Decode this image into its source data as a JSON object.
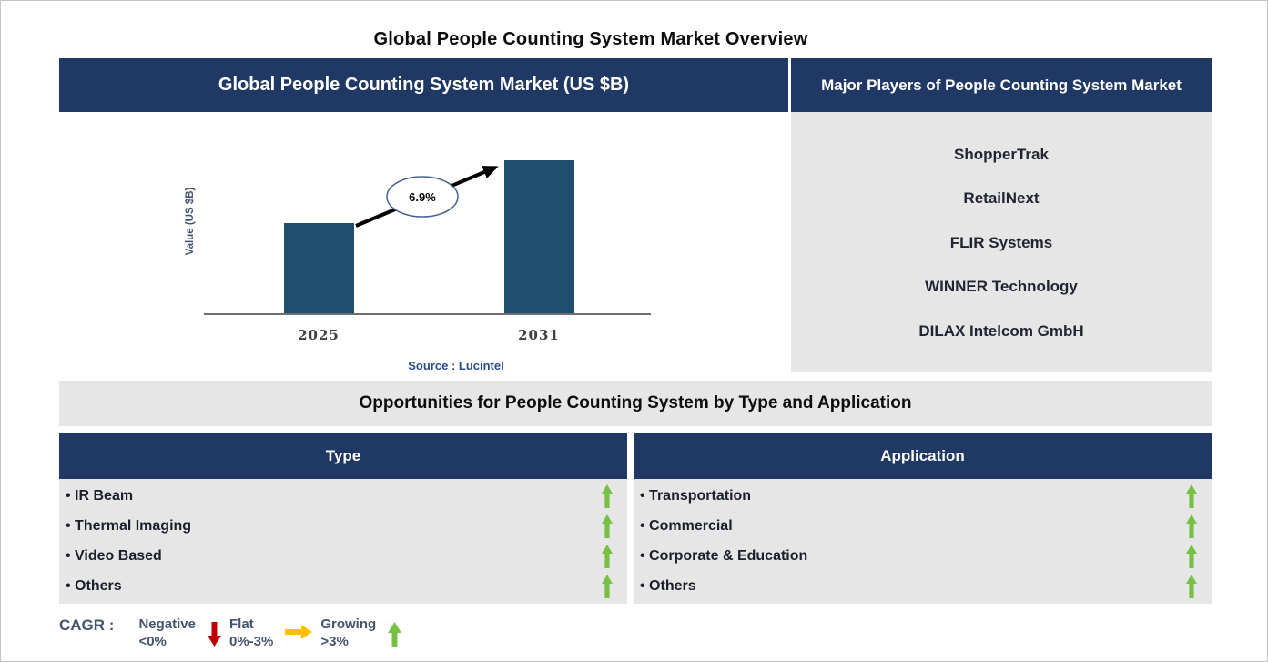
{
  "page": {
    "title": "Global People Counting System Market Overview"
  },
  "chart_panel": {
    "header": "Global People Counting System Market (US $B)"
  },
  "chart_data": {
    "type": "bar",
    "title": "Global People Counting System Market (US $B)",
    "categories": [
      "2025",
      "2031"
    ],
    "values_relative": [
      1.0,
      1.7
    ],
    "value_axis_labeled": false,
    "ylabel": "Value (US $B)",
    "xlabel": "",
    "cagr_label": "6.9%",
    "source": "Source : Lucintel",
    "bar_color": "#1F4E6E",
    "grid": false,
    "legend_position": "none"
  },
  "players_panel": {
    "header": "Major Players of People Counting System Market",
    "players": [
      "ShopperTrak",
      "RetailNext",
      "FLIR Systems",
      "WINNER Technology",
      "DILAX Intelcom GmbH"
    ]
  },
  "opportunities": {
    "title": "Opportunities for People Counting System by Type and Application",
    "columns": [
      {
        "header": "Type",
        "items": [
          {
            "label": "IR Beam",
            "trend": "growing"
          },
          {
            "label": "Thermal Imaging",
            "trend": "growing"
          },
          {
            "label": "Video Based",
            "trend": "growing"
          },
          {
            "label": "Others",
            "trend": "growing"
          }
        ]
      },
      {
        "header": "Application",
        "items": [
          {
            "label": "Transportation",
            "trend": "growing"
          },
          {
            "label": "Commercial",
            "trend": "growing"
          },
          {
            "label": "Corporate & Education",
            "trend": "growing"
          },
          {
            "label": "Others",
            "trend": "growing"
          }
        ]
      }
    ]
  },
  "legend": {
    "label": "CAGR :",
    "entries": [
      {
        "name": "Negative",
        "range": "<0%",
        "direction": "down",
        "color": "#C00000"
      },
      {
        "name": "Flat",
        "range": "0%-3%",
        "direction": "right",
        "color": "#FFC000"
      },
      {
        "name": "Growing",
        "range": ">3%",
        "direction": "up",
        "color": "#76C043"
      }
    ]
  },
  "colors": {
    "navy": "#203864",
    "bar_blue": "#1F4E6E",
    "panel_gray": "#E7E6E6",
    "growing_green": "#76C043",
    "negative_red": "#C00000",
    "flat_amber": "#FFC000",
    "legend_text": "#44546A",
    "tick_text": "#404040",
    "source_blue": "#2A4B8C"
  }
}
